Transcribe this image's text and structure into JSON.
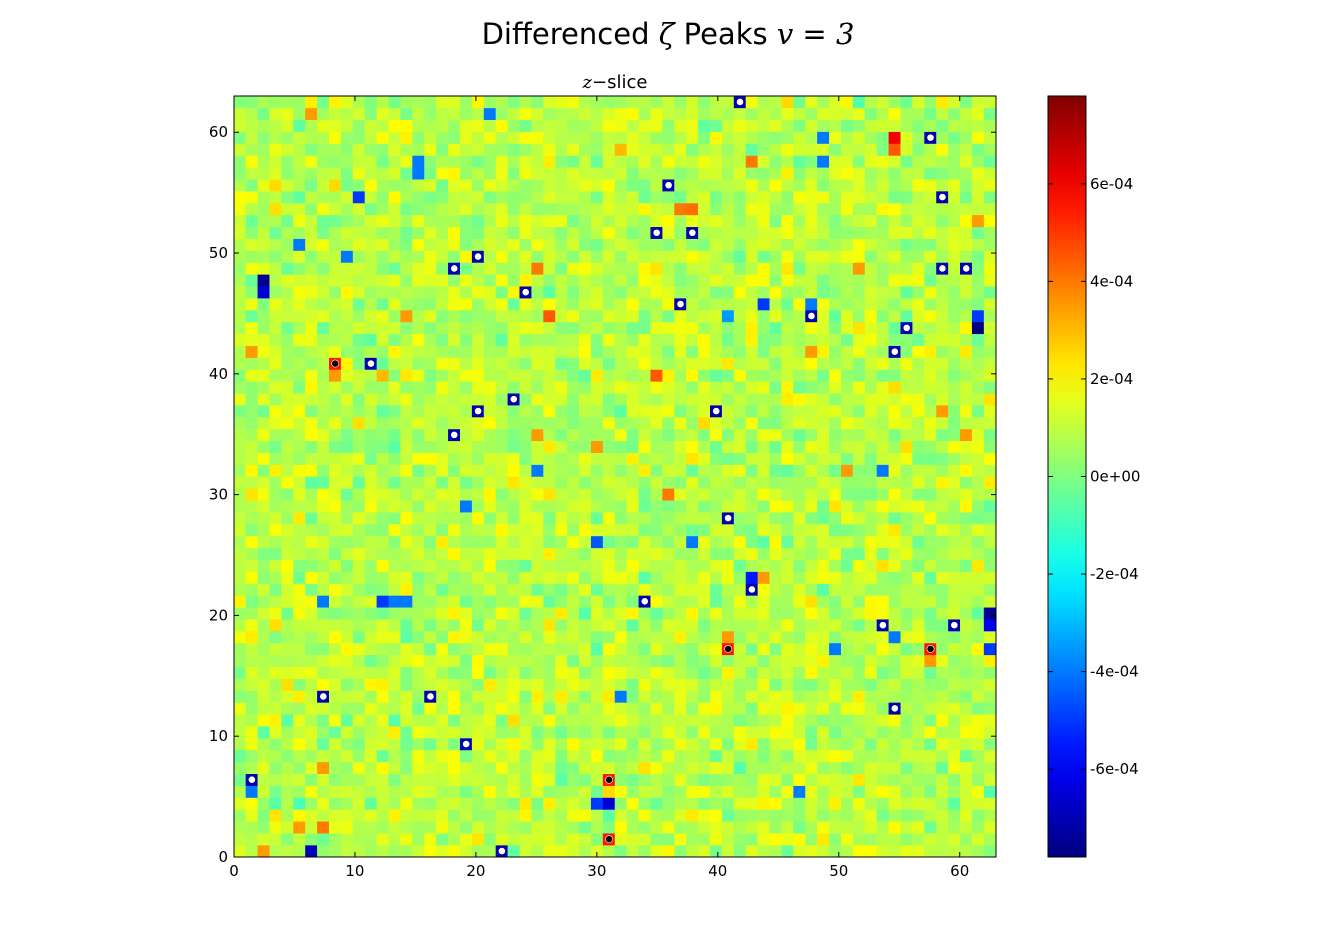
{
  "figure": {
    "title_prefix": "Differenced ",
    "title_zeta": "ζ",
    "title_middle": " Peaks ",
    "title_var": "v",
    "title_eq": " = ",
    "title_value": "3",
    "subtitle_var": "z",
    "subtitle_dash": "−",
    "subtitle_text": "slice"
  },
  "colors": {
    "colormap": "jet",
    "max_marker_fill": "#000000",
    "min_marker_fill": "#ffffff"
  },
  "chart_data": {
    "type": "heatmap",
    "title": "Differenced ζ Peaks v = 3",
    "subtitle": "z−slice",
    "grid_size": [
      64,
      64
    ],
    "xlim": [
      0,
      63
    ],
    "ylim": [
      0,
      63
    ],
    "x_ticks": [
      0,
      10,
      20,
      30,
      40,
      50,
      60
    ],
    "y_ticks": [
      0,
      10,
      20,
      30,
      40,
      50,
      60
    ],
    "colorbar": {
      "vmin": -0.00078,
      "vmax": 0.00078,
      "ticks": [
        0.0006,
        0.0004,
        0.0002,
        0.0,
        -0.0002,
        -0.0004,
        -0.0006
      ],
      "tick_labels": [
        "6e-04",
        "4e-04",
        "2e-04",
        "0e+00",
        "-2e-04",
        "-4e-04",
        "-6e-04"
      ]
    },
    "peaks_max": [
      {
        "x": 8,
        "y": 41
      },
      {
        "x": 41,
        "y": 17
      },
      {
        "x": 58,
        "y": 17
      },
      {
        "x": 31,
        "y": 6
      },
      {
        "x": 31,
        "y": 1
      }
    ],
    "peaks_min": [
      {
        "x": 58,
        "y": 60
      },
      {
        "x": 36,
        "y": 56
      },
      {
        "x": 59,
        "y": 55
      },
      {
        "x": 35,
        "y": 52
      },
      {
        "x": 38,
        "y": 52
      },
      {
        "x": 18,
        "y": 49
      },
      {
        "x": 20,
        "y": 50
      },
      {
        "x": 59,
        "y": 49
      },
      {
        "x": 61,
        "y": 49
      },
      {
        "x": 24,
        "y": 47
      },
      {
        "x": 37,
        "y": 46
      },
      {
        "x": 48,
        "y": 45
      },
      {
        "x": 56,
        "y": 44
      },
      {
        "x": 55,
        "y": 42
      },
      {
        "x": 11,
        "y": 41
      },
      {
        "x": 23,
        "y": 38
      },
      {
        "x": 20,
        "y": 37
      },
      {
        "x": 40,
        "y": 37
      },
      {
        "x": 18,
        "y": 35
      },
      {
        "x": 41,
        "y": 28
      },
      {
        "x": 43,
        "y": 22
      },
      {
        "x": 34,
        "y": 21
      },
      {
        "x": 54,
        "y": 19
      },
      {
        "x": 60,
        "y": 19
      },
      {
        "x": 7,
        "y": 13
      },
      {
        "x": 16,
        "y": 13
      },
      {
        "x": 55,
        "y": 12
      },
      {
        "x": 19,
        "y": 9
      },
      {
        "x": 1,
        "y": 6
      },
      {
        "x": 22,
        "y": 0
      },
      {
        "x": 42,
        "y": 63
      }
    ],
    "hot_cells": [
      {
        "x": 55,
        "y": 60,
        "v": 0.0006
      },
      {
        "x": 55,
        "y": 59,
        "v": 0.00045
      },
      {
        "x": 37,
        "y": 54,
        "v": 0.0004
      },
      {
        "x": 38,
        "y": 54,
        "v": 0.00042
      },
      {
        "x": 25,
        "y": 49,
        "v": 0.0004
      },
      {
        "x": 26,
        "y": 45,
        "v": 0.00045
      },
      {
        "x": 8,
        "y": 40,
        "v": 0.00035
      },
      {
        "x": 35,
        "y": 40,
        "v": 0.00045
      },
      {
        "x": 41,
        "y": 18,
        "v": 0.00035
      },
      {
        "x": 58,
        "y": 16,
        "v": 0.00035
      },
      {
        "x": 31,
        "y": 5,
        "v": 0.00025
      },
      {
        "x": 5,
        "y": 2,
        "v": 0.00035
      },
      {
        "x": 7,
        "y": 2,
        "v": 0.0004
      },
      {
        "x": 2,
        "y": 0,
        "v": 0.00035
      },
      {
        "x": 44,
        "y": 23,
        "v": 0.00035
      },
      {
        "x": 51,
        "y": 32,
        "v": 0.00035
      },
      {
        "x": 36,
        "y": 30,
        "v": 0.0004
      },
      {
        "x": 59,
        "y": 37,
        "v": 0.00035
      },
      {
        "x": 62,
        "y": 53,
        "v": 0.00035
      },
      {
        "x": 1,
        "y": 42,
        "v": 0.00035
      },
      {
        "x": 14,
        "y": 45,
        "v": 0.00035
      },
      {
        "x": 48,
        "y": 42,
        "v": 0.00035
      },
      {
        "x": 52,
        "y": 49,
        "v": 0.00035
      },
      {
        "x": 43,
        "y": 58,
        "v": 0.0004
      },
      {
        "x": 6,
        "y": 62,
        "v": 0.00035
      },
      {
        "x": 30,
        "y": 34,
        "v": 0.00035
      },
      {
        "x": 25,
        "y": 35,
        "v": 0.00035
      },
      {
        "x": 61,
        "y": 35,
        "v": 0.00035
      },
      {
        "x": 7,
        "y": 7,
        "v": 0.00035
      },
      {
        "x": 39,
        "y": 36,
        "v": 0.00025
      },
      {
        "x": 12,
        "y": 40,
        "v": 0.0003
      },
      {
        "x": 32,
        "y": 59,
        "v": 0.0003
      }
    ],
    "cold_cells": [
      {
        "x": 2,
        "y": 48,
        "v": -0.00075
      },
      {
        "x": 2,
        "y": 47,
        "v": -0.00065
      },
      {
        "x": 62,
        "y": 44,
        "v": -0.0008
      },
      {
        "x": 62,
        "y": 45,
        "v": -0.0005
      },
      {
        "x": 63,
        "y": 20,
        "v": -0.00075
      },
      {
        "x": 63,
        "y": 19,
        "v": -0.0006
      },
      {
        "x": 63,
        "y": 17,
        "v": -0.0005
      },
      {
        "x": 6,
        "y": 0,
        "v": -0.0007
      },
      {
        "x": 31,
        "y": 4,
        "v": -0.00065
      },
      {
        "x": 30,
        "y": 4,
        "v": -0.0005
      },
      {
        "x": 12,
        "y": 21,
        "v": -0.0005
      },
      {
        "x": 13,
        "y": 21,
        "v": -0.0004
      },
      {
        "x": 14,
        "y": 21,
        "v": -0.0004
      },
      {
        "x": 43,
        "y": 23,
        "v": -0.00055
      },
      {
        "x": 44,
        "y": 46,
        "v": -0.0005
      },
      {
        "x": 48,
        "y": 46,
        "v": -0.0004
      },
      {
        "x": 10,
        "y": 55,
        "v": -0.0005
      },
      {
        "x": 15,
        "y": 58,
        "v": -0.0004
      },
      {
        "x": 15,
        "y": 57,
        "v": -0.0004
      },
      {
        "x": 7,
        "y": 21,
        "v": -0.0004
      },
      {
        "x": 1,
        "y": 5,
        "v": -0.0004
      },
      {
        "x": 30,
        "y": 26,
        "v": -0.00045
      },
      {
        "x": 38,
        "y": 26,
        "v": -0.0004
      },
      {
        "x": 32,
        "y": 13,
        "v": -0.0004
      },
      {
        "x": 47,
        "y": 5,
        "v": -0.0004
      },
      {
        "x": 54,
        "y": 32,
        "v": -0.0004
      },
      {
        "x": 50,
        "y": 17,
        "v": -0.0004
      },
      {
        "x": 55,
        "y": 18,
        "v": -0.0004
      },
      {
        "x": 25,
        "y": 32,
        "v": -0.0004
      },
      {
        "x": 19,
        "y": 29,
        "v": -0.0004
      },
      {
        "x": 9,
        "y": 50,
        "v": -0.0004
      },
      {
        "x": 5,
        "y": 51,
        "v": -0.0004
      },
      {
        "x": 49,
        "y": 58,
        "v": -0.0004
      },
      {
        "x": 41,
        "y": 45,
        "v": -0.00035
      },
      {
        "x": 49,
        "y": 60,
        "v": -0.0004
      },
      {
        "x": 21,
        "y": 62,
        "v": -0.0004
      }
    ]
  }
}
